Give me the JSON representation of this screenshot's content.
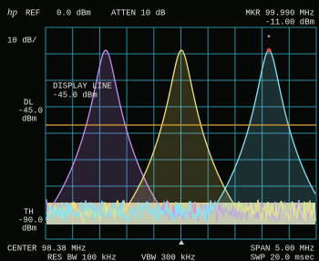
{
  "header": {
    "logo": "hp",
    "ref": "REF",
    "ref_level": "0.0 dBm",
    "atten": "ATTEN 10 dB",
    "marker_freq": "MKR 99.990 MHz",
    "marker_level": "-11.00 dBm",
    "scale": "10 dB/",
    "marker_symbol": "*"
  },
  "display_line_note": {
    "title": "DISPLAY LINE",
    "level": "-45.0 dBm"
  },
  "left_annotations": {
    "dl": {
      "label": "DL",
      "value": "-45.0",
      "unit": "dBm"
    },
    "th": {
      "label": "TH",
      "value": "-90.0",
      "unit": "dBm"
    }
  },
  "footer": {
    "center": "CENTER 98.38 MHz",
    "span": "SPAN 5.00 MHz",
    "res_bw": "RES BW 100 kHz",
    "vbw": "VBW 300 kHz",
    "sweep": "SWP 20.0 msec"
  }
}
